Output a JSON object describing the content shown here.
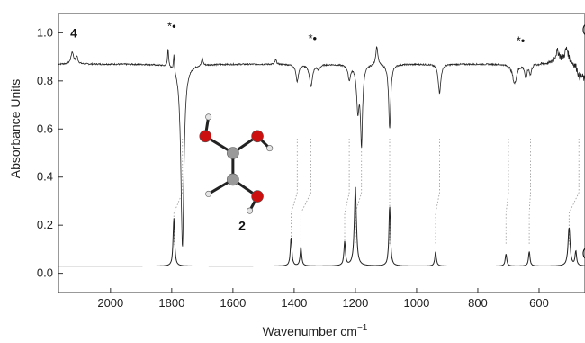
{
  "chart_data": {
    "type": "line",
    "xlabel": "Wavenumber cm",
    "xlabel_superscript": "−1",
    "ylabel": "Absorbance Units",
    "xlim": [
      2170,
      450
    ],
    "ylim": [
      -0.08,
      1.08
    ],
    "x_ticks": [
      2000,
      1800,
      1600,
      1400,
      1200,
      1000,
      800,
      600
    ],
    "y_ticks": [
      0.0,
      0.2,
      0.4,
      0.6,
      0.8,
      1.0
    ],
    "y_tick_labels": [
      "0.0",
      "0.2",
      "0.4",
      "0.6",
      "0.8",
      "1.0"
    ],
    "grid": false,
    "series": [
      {
        "trace_label": "(a",
        "baseline": 0.03,
        "peaks": [
          {
            "x": 1793,
            "y": 0.2,
            "w": 3
          },
          {
            "x": 1410,
            "y": 0.12,
            "w": 3
          },
          {
            "x": 1378,
            "y": 0.08,
            "w": 3
          },
          {
            "x": 1235,
            "y": 0.1,
            "w": 3
          },
          {
            "x": 1200,
            "y": 0.33,
            "w": 4
          },
          {
            "x": 1088,
            "y": 0.25,
            "w": 3
          },
          {
            "x": 938,
            "y": 0.06,
            "w": 3
          },
          {
            "x": 708,
            "y": 0.05,
            "w": 3
          },
          {
            "x": 632,
            "y": 0.06,
            "w": 3
          },
          {
            "x": 502,
            "y": 0.16,
            "w": 4
          },
          {
            "x": 480,
            "y": 0.06,
            "w": 3
          }
        ]
      },
      {
        "trace_label": "(b",
        "baseline": 0.87,
        "features": [
          {
            "x": 2125,
            "y": 0.05,
            "w": 5
          },
          {
            "x": 2110,
            "y": 0.03,
            "w": 4
          },
          {
            "x": 1812,
            "y": 0.08,
            "w": 2
          },
          {
            "x": 1793,
            "y": 0.07,
            "w": 2
          },
          {
            "x": 1765,
            "y": -0.76,
            "w": 6
          },
          {
            "x": 1700,
            "y": 0.03,
            "w": 3
          },
          {
            "x": 1460,
            "y": 0.02,
            "w": 3
          },
          {
            "x": 1390,
            "y": -0.07,
            "w": 5
          },
          {
            "x": 1345,
            "y": -0.09,
            "w": 6
          },
          {
            "x": 1320,
            "y": -0.02,
            "w": 5
          },
          {
            "x": 1220,
            "y": -0.06,
            "w": 5
          },
          {
            "x": 1192,
            "y": -0.18,
            "w": 5
          },
          {
            "x": 1180,
            "y": -0.32,
            "w": 4
          },
          {
            "x": 1130,
            "y": 0.08,
            "w": 4
          },
          {
            "x": 1088,
            "y": -0.27,
            "w": 4
          },
          {
            "x": 925,
            "y": -0.12,
            "w": 5
          },
          {
            "x": 680,
            "y": -0.08,
            "w": 8
          },
          {
            "x": 643,
            "y": -0.06,
            "w": 4
          },
          {
            "x": 628,
            "y": -0.04,
            "w": 4
          },
          {
            "x": 540,
            "y": 0.05,
            "w": 10
          },
          {
            "x": 510,
            "y": 0.06,
            "w": 8
          },
          {
            "x": 470,
            "y": -0.04,
            "w": 8
          }
        ]
      }
    ],
    "connectors": [
      {
        "a": 1793,
        "b": 1765
      },
      {
        "a": 1410,
        "b": 1390
      },
      {
        "a": 1378,
        "b": 1345
      },
      {
        "a": 1235,
        "b": 1220
      },
      {
        "a": 1200,
        "b": 1180
      },
      {
        "a": 1088,
        "b": 1088
      },
      {
        "a": 938,
        "b": 925
      },
      {
        "a": 708,
        "b": 700
      },
      {
        "a": 632,
        "b": 628
      },
      {
        "a": 502,
        "b": 470
      }
    ],
    "annotations": [
      {
        "x": 1800,
        "y": 1.01,
        "text": "*•",
        "kind": "marker"
      },
      {
        "x": 1340,
        "y": 0.96,
        "text": "*•",
        "kind": "marker"
      },
      {
        "x": 660,
        "y": 0.95,
        "text": "*•",
        "kind": "marker"
      },
      {
        "x": 2120,
        "y": 0.98,
        "text": "4",
        "kind": "compound"
      },
      {
        "x": 1570,
        "y": 0.18,
        "text": "2",
        "kind": "compound"
      },
      {
        "x": 460,
        "y": 1.0,
        "text": "(b",
        "kind": "trace"
      },
      {
        "x": 460,
        "y": 0.07,
        "text": "(a",
        "kind": "trace"
      }
    ]
  },
  "molecule": {
    "atoms": [
      {
        "x": 1690,
        "y": 0.57,
        "el": "O"
      },
      {
        "x": 1600,
        "y": 0.5,
        "el": "C"
      },
      {
        "x": 1520,
        "y": 0.57,
        "el": "O"
      },
      {
        "x": 1480,
        "y": 0.52,
        "el": "H"
      },
      {
        "x": 1600,
        "y": 0.39,
        "el": "C"
      },
      {
        "x": 1680,
        "y": 0.33,
        "el": "H"
      },
      {
        "x": 1520,
        "y": 0.32,
        "el": "O"
      },
      {
        "x": 1545,
        "y": 0.26,
        "el": "H"
      },
      {
        "x": 1680,
        "y": 0.65,
        "el": "H"
      }
    ],
    "bonds": [
      [
        0,
        1
      ],
      [
        1,
        2
      ],
      [
        2,
        3
      ],
      [
        1,
        4
      ],
      [
        4,
        5
      ],
      [
        4,
        6
      ],
      [
        6,
        7
      ],
      [
        0,
        8
      ]
    ],
    "colors": {
      "O": "#cc1010",
      "C": "#9a9a9a",
      "H": "#e4e4e4"
    }
  }
}
